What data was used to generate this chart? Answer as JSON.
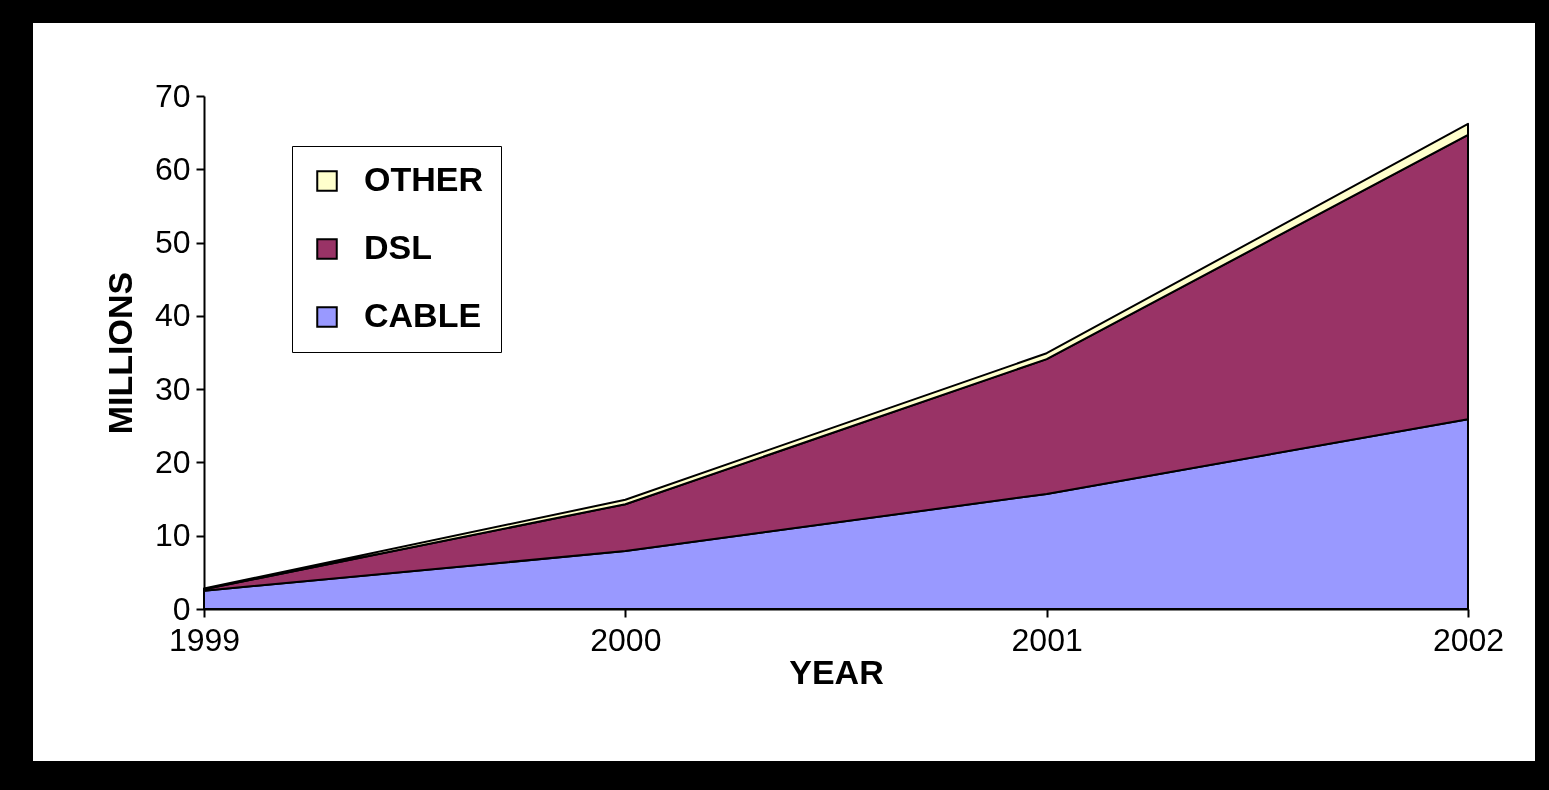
{
  "chart_data": {
    "type": "area",
    "xlabel": "YEAR",
    "ylabel": "MILLIONS",
    "x": [
      1999,
      2000,
      2001,
      2002
    ],
    "xlim": [
      1999,
      2002
    ],
    "xticks": [
      1999,
      2000,
      2001,
      2002
    ],
    "ylim": [
      0,
      70
    ],
    "yticks": [
      0,
      10,
      20,
      30,
      40,
      50,
      60,
      70
    ],
    "stacked": true,
    "grid": false,
    "legend": "top left",
    "series": [
      {
        "name": "CABLE",
        "color": "#9999ff",
        "values": [
          2.5,
          7.9,
          15.7,
          25.9
        ]
      },
      {
        "name": "DSL",
        "color": "#993366",
        "values": [
          0.2,
          6.4,
          18.4,
          38.8
        ]
      },
      {
        "name": "OTHER",
        "color": "#ffffcc",
        "values": [
          0.1,
          0.6,
          0.8,
          1.5
        ]
      }
    ]
  }
}
